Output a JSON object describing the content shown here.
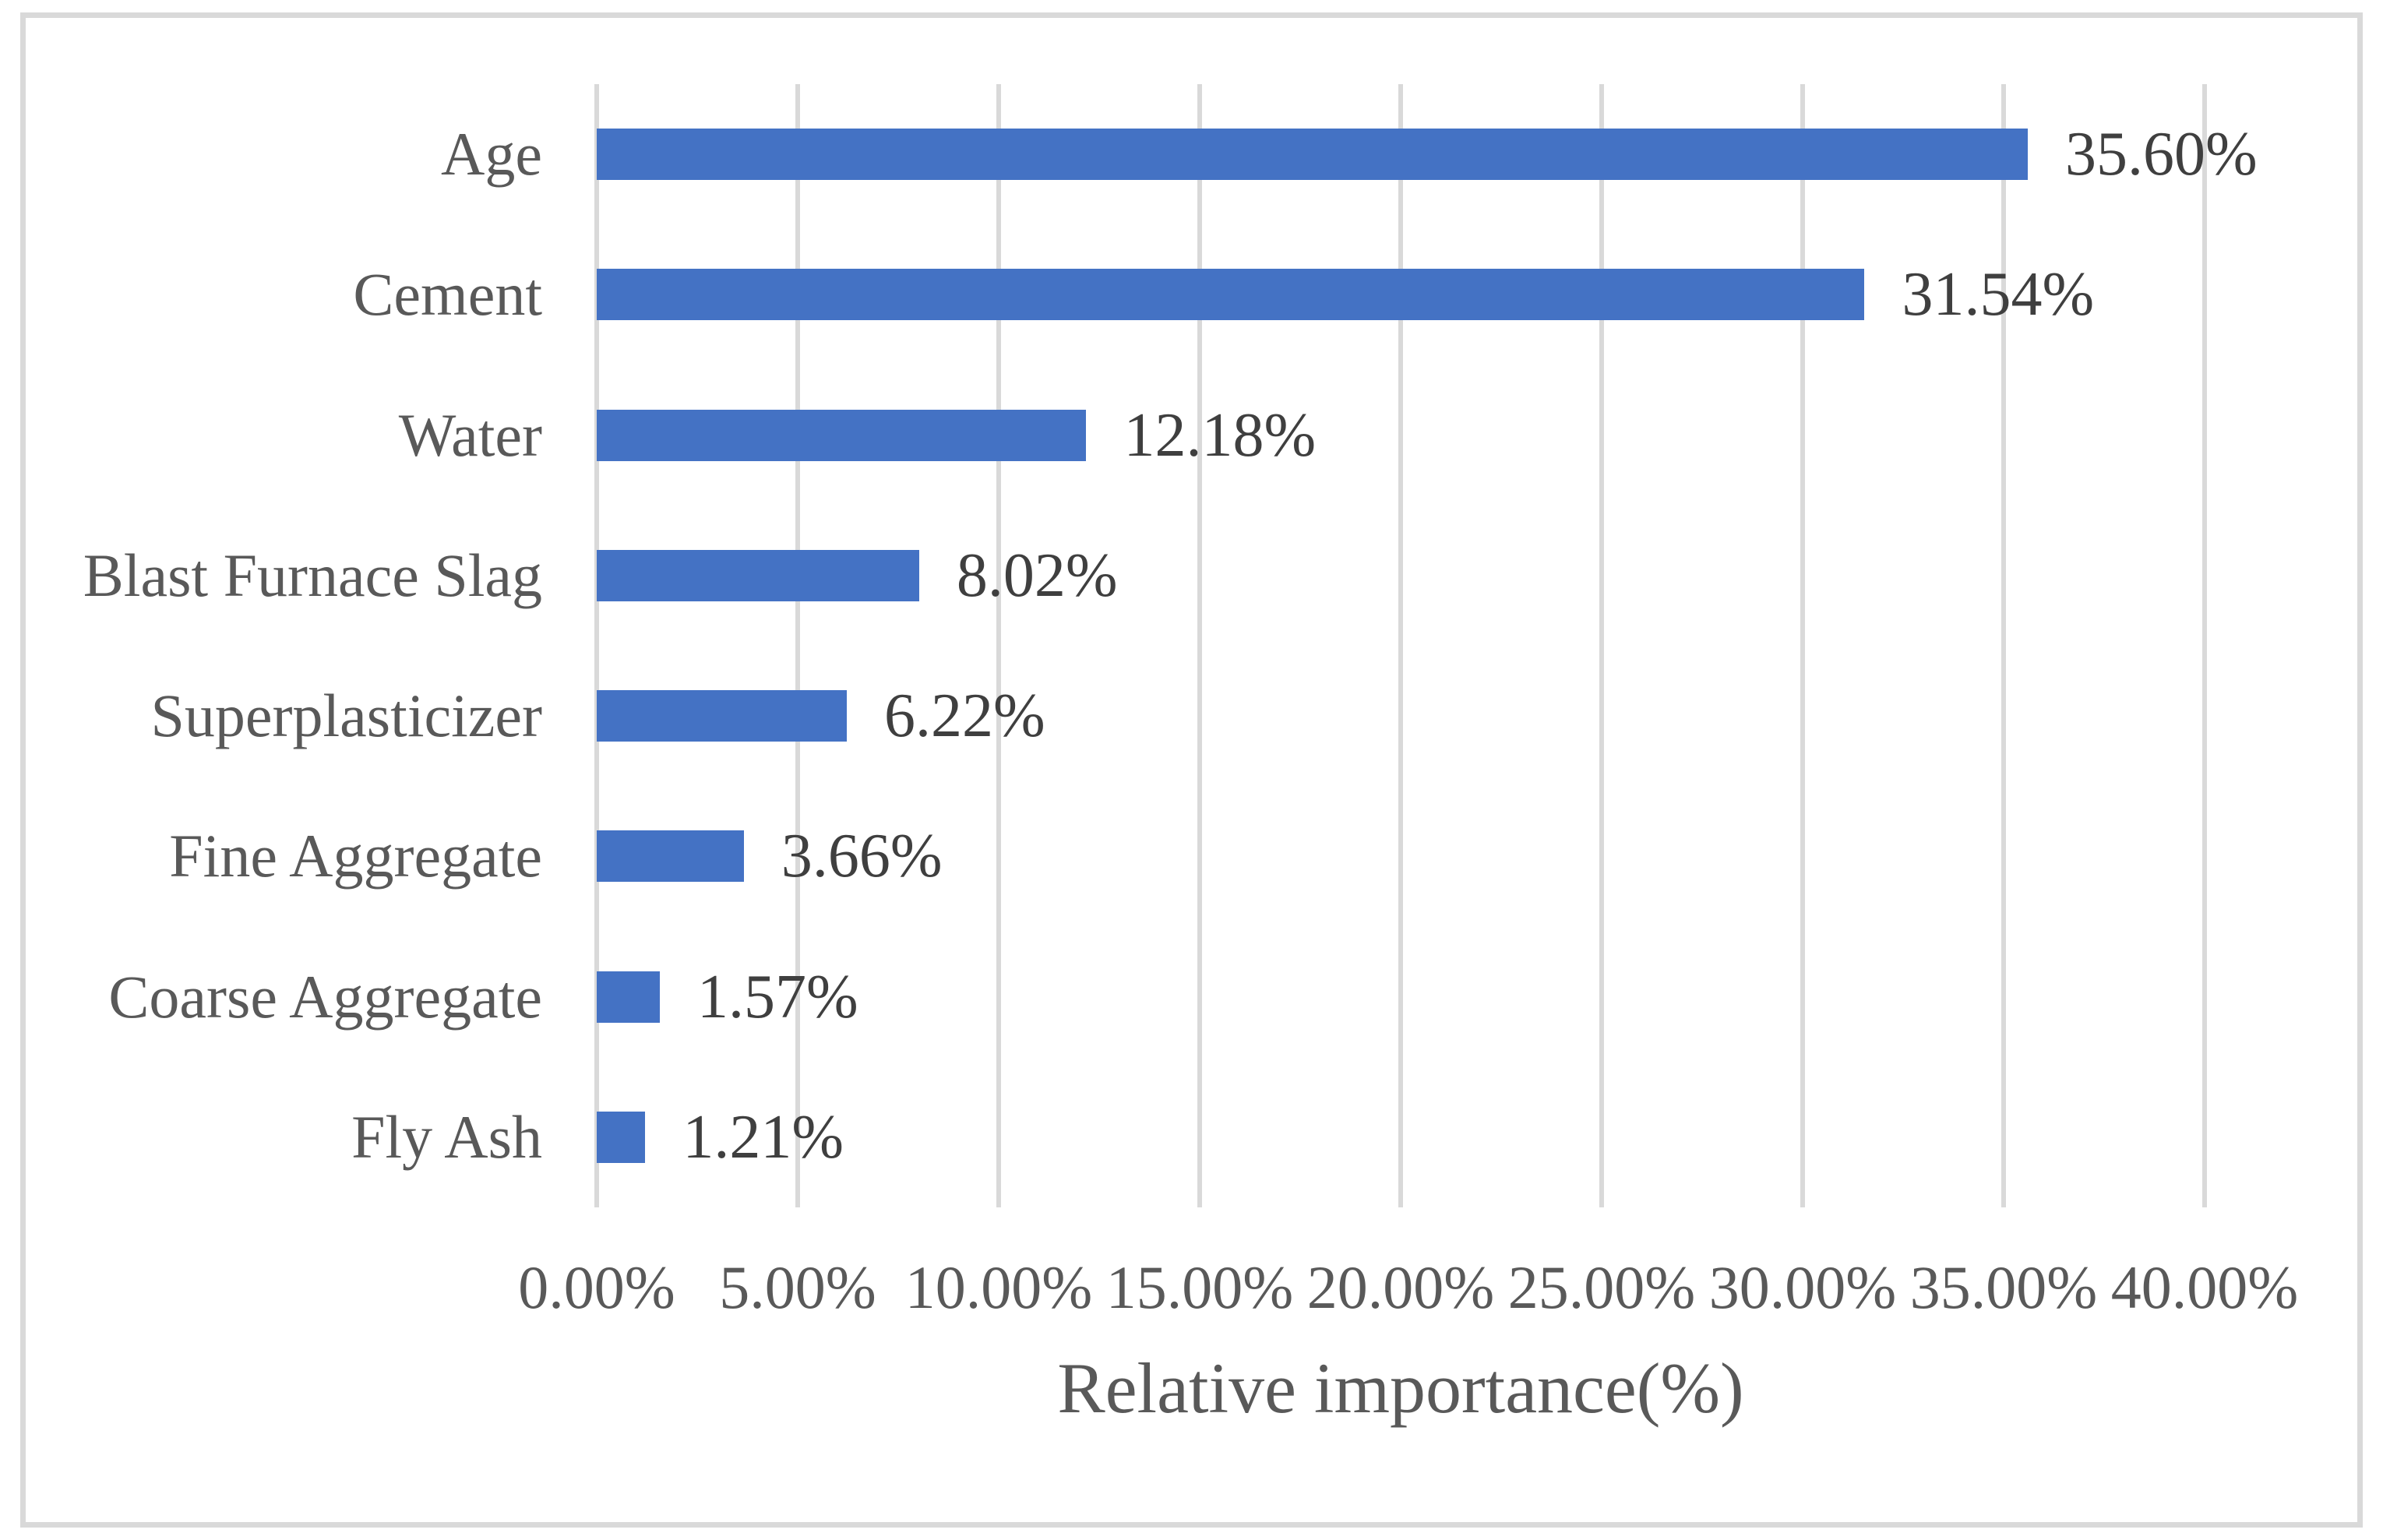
{
  "chart_data": {
    "type": "bar",
    "orientation": "horizontal",
    "title": "",
    "xlabel": "Relative importance(%)",
    "categories": [
      "Age",
      "Cement",
      "Water",
      "Blast Furnace Slag",
      "Superplasticizer",
      "Fine Aggregate",
      "Coarse Aggregate",
      "Fly Ash"
    ],
    "values": [
      35.6,
      31.54,
      12.18,
      8.02,
      6.22,
      3.66,
      1.57,
      1.21
    ],
    "value_labels": [
      "35.60%",
      "31.54%",
      "12.18%",
      "8.02%",
      "6.22%",
      "3.66%",
      "1.57%",
      "1.21%"
    ],
    "xlim": [
      0,
      40
    ],
    "x_ticks": [
      0,
      5,
      10,
      15,
      20,
      25,
      30,
      35,
      40
    ],
    "x_tick_labels": [
      "0.00%",
      "5.00%",
      "10.00%",
      "15.00%",
      "20.00%",
      "25.00%",
      "30.00%",
      "35.00%",
      "40.00%"
    ],
    "grid": "vertical",
    "legend": "none",
    "colors": {
      "bar": "#4472C4",
      "gridline": "#D9D9D9",
      "frame_border": "#D9D9D9",
      "axis_text": "#595959",
      "data_label_text": "#3F3F3F"
    }
  }
}
